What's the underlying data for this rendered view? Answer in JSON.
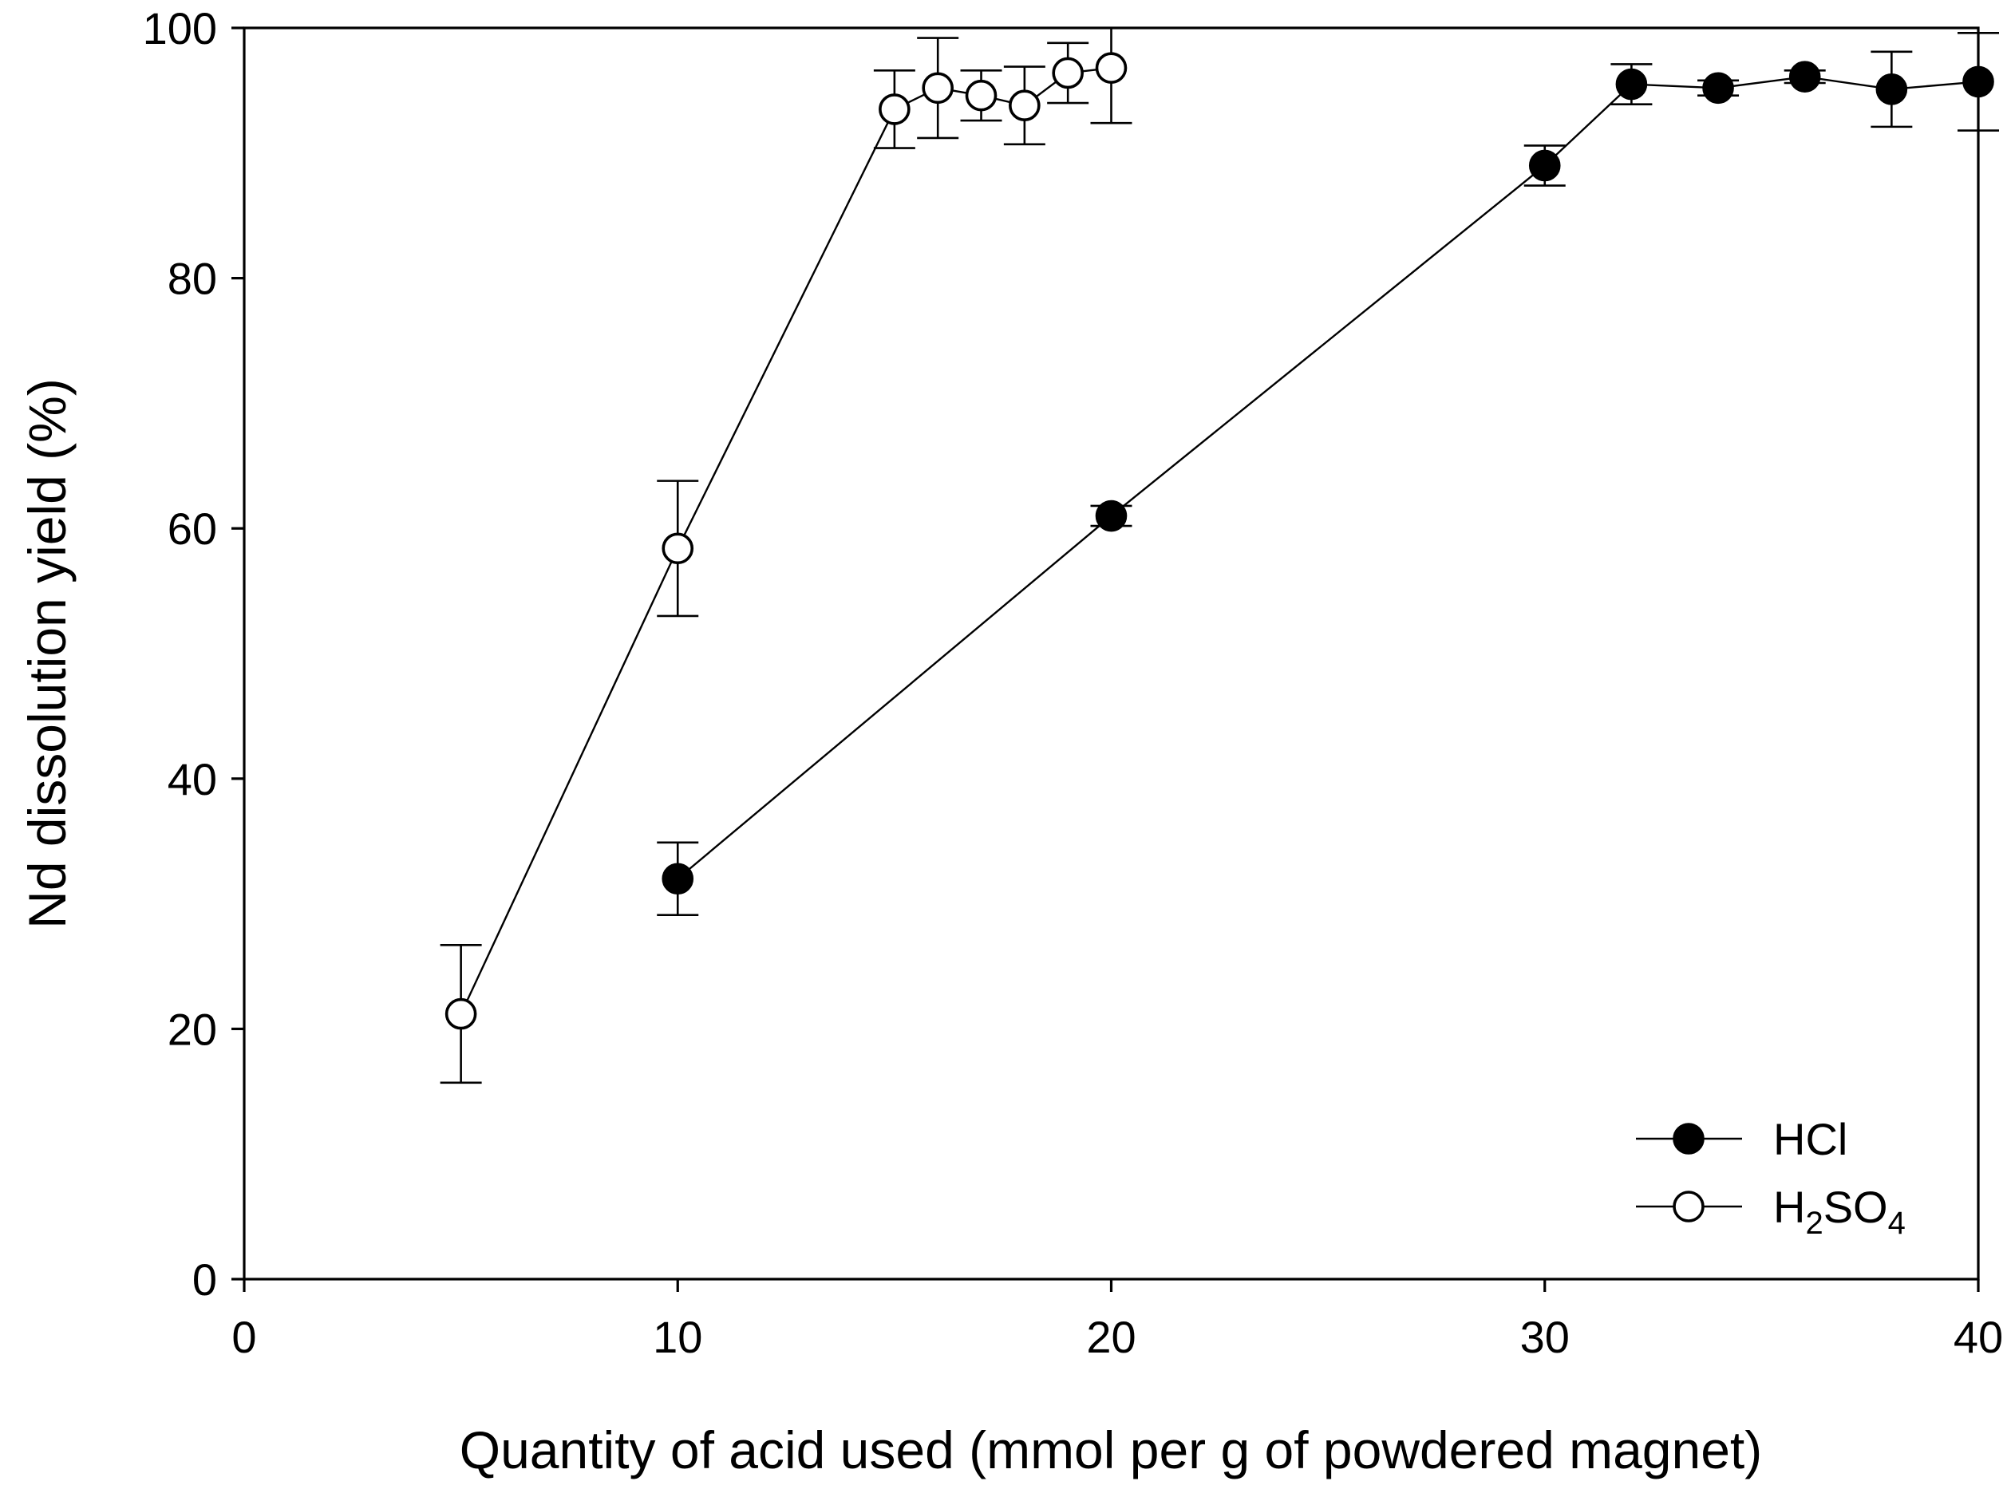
{
  "chart_data": {
    "type": "line",
    "xlabel": "Quantity of acid used (mmol per g of powdered magnet)",
    "ylabel": "Nd dissolution yield (%)",
    "xlim": [
      0,
      40
    ],
    "ylim": [
      0,
      100
    ],
    "xticks": [
      "0",
      "10",
      "20",
      "30",
      "40"
    ],
    "yticks": [
      "0",
      "20",
      "40",
      "60",
      "80",
      "100"
    ],
    "grid": false,
    "legend_position": "bottom-right",
    "series": [
      {
        "name": "HCl",
        "marker": "filled-circle",
        "color": "#000000",
        "x": [
          10,
          20,
          30,
          32,
          34,
          36,
          38,
          40
        ],
        "y": [
          32.0,
          61.0,
          89.0,
          95.5,
          95.2,
          96.1,
          95.1,
          95.7
        ],
        "err": [
          2.9,
          0.8,
          1.6,
          1.6,
          0.6,
          0.5,
          3.0,
          3.9
        ]
      },
      {
        "name": "H2SO4",
        "name_parts": {
          "h": "H",
          "sub1": "2",
          "so": "SO",
          "sub2": "4"
        },
        "marker": "open-circle",
        "color": "#000000",
        "x": [
          5,
          10,
          15,
          16,
          17,
          18,
          19,
          20
        ],
        "y": [
          21.2,
          58.4,
          93.5,
          95.2,
          94.6,
          93.8,
          96.4,
          96.8
        ],
        "err": [
          5.5,
          5.4,
          3.1,
          4.0,
          2.0,
          3.1,
          2.4,
          4.4
        ]
      }
    ]
  }
}
